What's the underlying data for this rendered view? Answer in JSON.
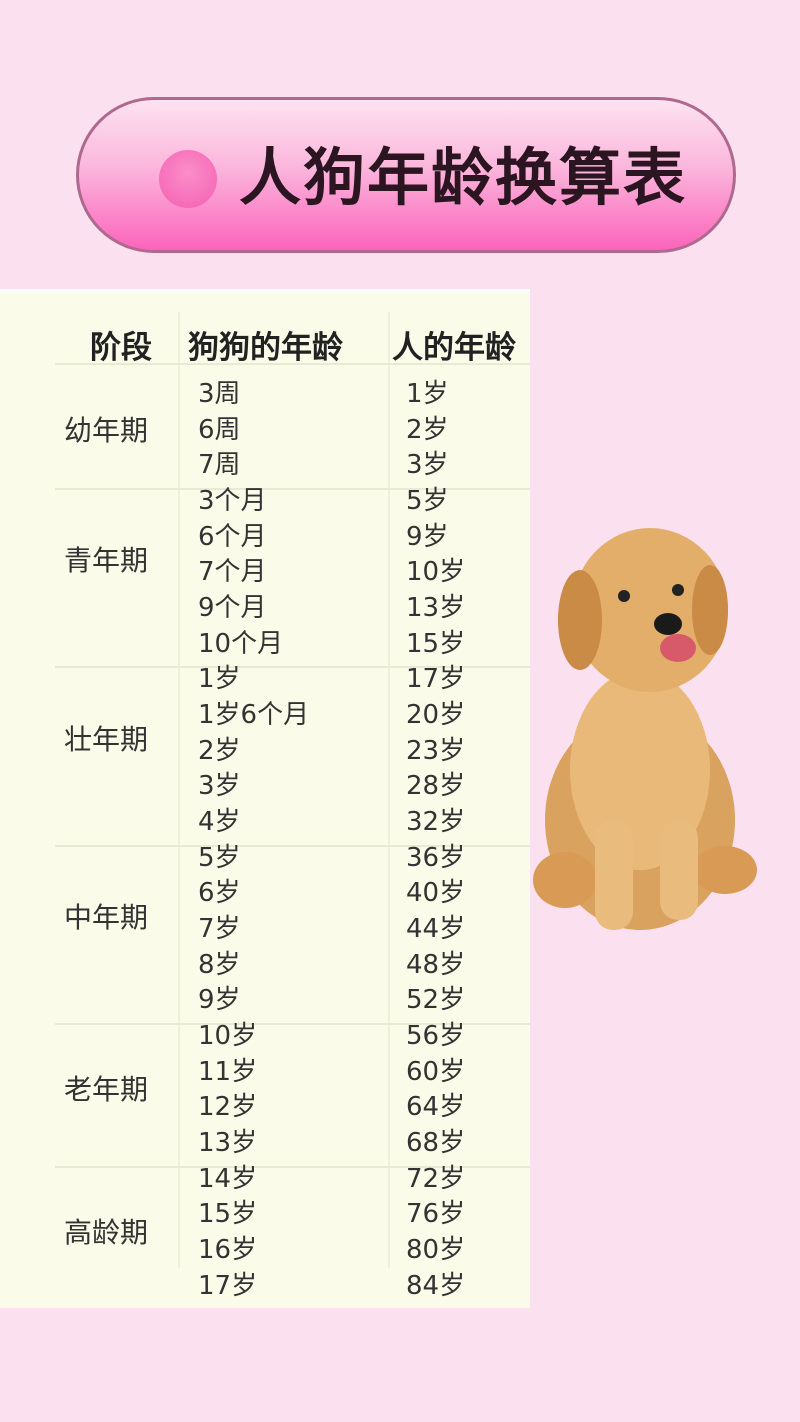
{
  "title": "人狗年龄换算表",
  "colors": {
    "banner": "#fb64bb",
    "background": "#fbe1ef",
    "table": "#fafce9"
  },
  "table": {
    "headers": [
      "阶段",
      "狗狗的年龄",
      "人的年龄"
    ],
    "groups": [
      {
        "stage": "幼年期",
        "rows": [
          [
            "3周",
            "1岁"
          ],
          [
            "6周",
            "2岁"
          ],
          [
            "7周",
            "3岁"
          ]
        ]
      },
      {
        "stage": "青年期",
        "rows": [
          [
            "3个月",
            "5岁"
          ],
          [
            "6个月",
            "9岁"
          ],
          [
            "7个月",
            "10岁"
          ],
          [
            "9个月",
            "13岁"
          ],
          [
            "10个月",
            "15岁"
          ]
        ]
      },
      {
        "stage": "壮年期",
        "rows": [
          [
            "1岁",
            "17岁"
          ],
          [
            "1岁6个月",
            "20岁"
          ],
          [
            "2岁",
            "23岁"
          ],
          [
            "3岁",
            "28岁"
          ],
          [
            "4岁",
            "32岁"
          ]
        ]
      },
      {
        "stage": "中年期",
        "rows": [
          [
            "5岁",
            "36岁"
          ],
          [
            "6岁",
            "40岁"
          ],
          [
            "7岁",
            "44岁"
          ],
          [
            "8岁",
            "48岁"
          ],
          [
            "9岁",
            "52岁"
          ]
        ]
      },
      {
        "stage": "老年期",
        "rows": [
          [
            "10岁",
            "56岁"
          ],
          [
            "11岁",
            "60岁"
          ],
          [
            "12岁",
            "64岁"
          ],
          [
            "13岁",
            "68岁"
          ]
        ]
      },
      {
        "stage": "高龄期",
        "rows": [
          [
            "14岁",
            "72岁"
          ],
          [
            "15岁",
            "76岁"
          ],
          [
            "16岁",
            "80岁"
          ],
          [
            "17岁",
            "84岁"
          ]
        ]
      }
    ]
  },
  "image": {
    "subject": "golden-retriever-puppy"
  }
}
